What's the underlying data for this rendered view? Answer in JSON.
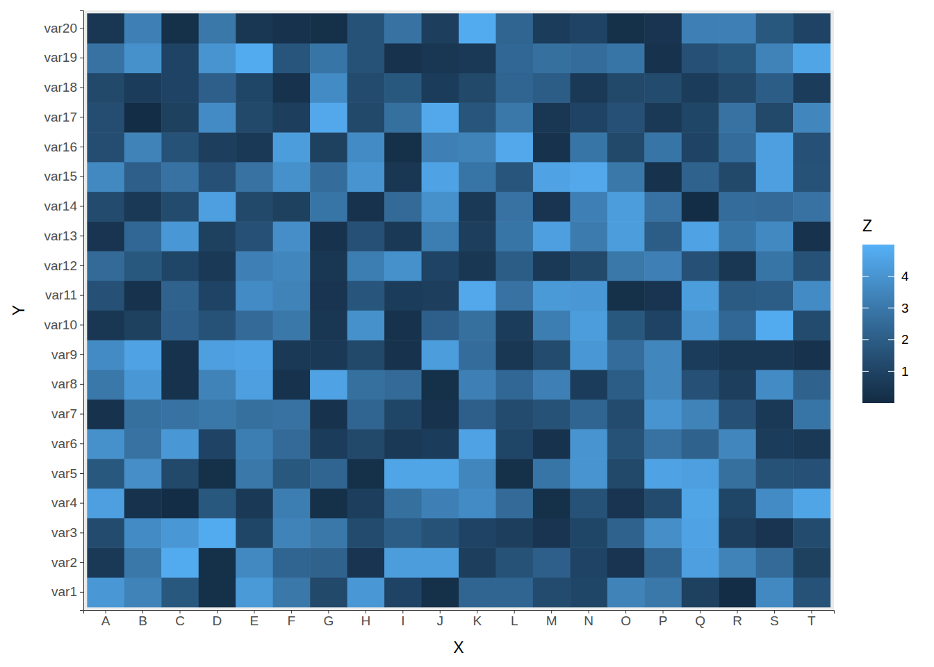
{
  "chart_data": {
    "type": "heatmap",
    "x_label": "X",
    "y_label": "Y",
    "x_categories": [
      "A",
      "B",
      "C",
      "D",
      "E",
      "F",
      "G",
      "H",
      "I",
      "J",
      "K",
      "L",
      "M",
      "N",
      "O",
      "P",
      "Q",
      "R",
      "S",
      "T"
    ],
    "y_categories": [
      "var1",
      "var2",
      "var3",
      "var4",
      "var5",
      "var6",
      "var7",
      "var8",
      "var9",
      "var10",
      "var11",
      "var12",
      "var13",
      "var14",
      "var15",
      "var16",
      "var17",
      "var18",
      "var19",
      "var20"
    ],
    "z": [
      [
        4.1,
        3.4,
        1.8,
        0.2,
        4.2,
        3.0,
        1.2,
        4.1,
        1.0,
        0.2,
        2.3,
        2.3,
        1.3,
        1.1,
        3.4,
        3.0,
        0.9,
        0.1,
        3.6,
        1.6
      ],
      [
        0.6,
        3.0,
        4.8,
        0.2,
        3.6,
        2.3,
        2.2,
        0.4,
        4.3,
        4.3,
        0.8,
        1.6,
        2.1,
        1.0,
        0.4,
        2.3,
        4.4,
        3.4,
        2.5,
        0.9
      ],
      [
        1.3,
        3.7,
        4.1,
        4.8,
        1.1,
        3.4,
        3.0,
        1.3,
        2.0,
        1.6,
        1.0,
        0.8,
        0.4,
        1.1,
        2.2,
        3.8,
        4.5,
        0.8,
        0.4,
        1.3
      ],
      [
        4.4,
        0.3,
        0.1,
        1.8,
        0.6,
        3.2,
        0.2,
        0.8,
        2.7,
        3.3,
        3.7,
        2.5,
        0.2,
        1.6,
        0.4,
        1.3,
        4.6,
        1.1,
        3.7,
        4.6
      ],
      [
        1.8,
        3.8,
        1.2,
        0.2,
        3.0,
        1.8,
        2.3,
        0.2,
        4.6,
        4.6,
        3.5,
        0.2,
        2.9,
        4.0,
        1.2,
        4.5,
        4.4,
        2.7,
        1.6,
        1.5
      ],
      [
        3.9,
        2.8,
        4.1,
        1.0,
        3.2,
        2.5,
        0.7,
        1.2,
        0.6,
        0.7,
        4.5,
        1.1,
        0.3,
        4.0,
        1.6,
        2.8,
        2.2,
        3.5,
        0.7,
        0.6
      ],
      [
        0.3,
        2.7,
        2.8,
        3.0,
        2.7,
        2.8,
        0.3,
        2.3,
        1.1,
        0.3,
        2.1,
        1.3,
        1.6,
        2.3,
        1.3,
        4.0,
        3.4,
        1.5,
        0.6,
        2.9
      ],
      [
        3.0,
        4.1,
        0.3,
        3.4,
        4.4,
        0.3,
        4.5,
        2.7,
        2.5,
        0.2,
        3.3,
        2.4,
        3.3,
        0.7,
        2.0,
        3.5,
        1.5,
        0.8,
        3.7,
        2.2
      ],
      [
        3.7,
        4.5,
        0.3,
        4.4,
        4.5,
        0.6,
        0.6,
        1.2,
        0.3,
        4.3,
        2.6,
        0.5,
        1.3,
        4.1,
        2.6,
        3.5,
        0.7,
        0.5,
        0.5,
        0.3
      ],
      [
        0.5,
        0.9,
        2.1,
        1.6,
        2.5,
        3.0,
        0.5,
        3.9,
        0.3,
        2.1,
        2.7,
        0.7,
        3.2,
        4.3,
        1.8,
        1.0,
        4.0,
        2.4,
        4.8,
        1.3
      ],
      [
        1.5,
        0.3,
        2.2,
        1.0,
        3.7,
        3.4,
        0.4,
        1.7,
        0.7,
        0.8,
        4.7,
        2.8,
        4.2,
        4.1,
        0.2,
        0.4,
        4.3,
        1.9,
        2.0,
        3.7
      ],
      [
        2.5,
        1.8,
        1.1,
        0.6,
        3.3,
        3.5,
        0.5,
        3.2,
        3.9,
        1.0,
        0.5,
        2.0,
        0.6,
        1.2,
        3.0,
        3.3,
        1.5,
        0.5,
        2.9,
        1.6
      ],
      [
        0.4,
        2.4,
        4.1,
        0.9,
        1.5,
        3.8,
        0.3,
        1.5,
        0.6,
        3.2,
        0.8,
        2.9,
        4.4,
        3.1,
        4.3,
        2.0,
        4.5,
        2.9,
        3.6,
        0.3
      ],
      [
        1.3,
        0.6,
        1.3,
        4.4,
        1.2,
        0.9,
        2.9,
        0.3,
        2.5,
        3.9,
        0.6,
        2.8,
        0.4,
        3.3,
        4.3,
        2.8,
        0.1,
        2.6,
        2.5,
        2.8
      ],
      [
        3.6,
        2.1,
        2.8,
        1.5,
        2.8,
        3.9,
        2.6,
        4.0,
        0.5,
        4.5,
        2.9,
        1.7,
        4.5,
        4.7,
        3.0,
        0.3,
        2.2,
        1.2,
        4.4,
        1.6
      ],
      [
        1.4,
        3.4,
        1.6,
        0.8,
        0.6,
        4.3,
        0.9,
        3.7,
        0.2,
        3.3,
        3.4,
        4.7,
        0.3,
        2.9,
        1.2,
        2.9,
        1.0,
        2.6,
        4.4,
        1.5
      ],
      [
        1.4,
        0.1,
        0.9,
        3.7,
        1.2,
        0.8,
        4.7,
        1.2,
        2.7,
        4.7,
        1.7,
        3.0,
        0.5,
        1.0,
        1.5,
        0.6,
        1.1,
        2.8,
        1.2,
        3.5
      ],
      [
        1.2,
        0.7,
        1.0,
        2.1,
        1.1,
        0.3,
        3.7,
        1.3,
        1.8,
        0.7,
        1.2,
        2.3,
        2.0,
        0.6,
        1.2,
        1.3,
        0.7,
        1.2,
        2.0,
        0.7
      ],
      [
        2.8,
        3.9,
        1.0,
        4.0,
        4.8,
        1.7,
        2.9,
        1.6,
        0.3,
        0.5,
        0.6,
        2.4,
        2.7,
        2.6,
        2.9,
        0.3,
        1.5,
        1.8,
        3.4,
        4.6
      ],
      [
        0.5,
        3.3,
        0.2,
        3.0,
        0.5,
        0.3,
        0.2,
        1.6,
        2.8,
        0.8,
        4.8,
        2.3,
        0.7,
        1.0,
        0.2,
        0.4,
        3.3,
        3.3,
        1.8,
        1.0
      ]
    ],
    "colorbar": {
      "title": "Z",
      "range": [
        0,
        5
      ],
      "ticks": [
        1,
        2,
        3,
        4
      ],
      "colors": [
        "#132B43",
        "#56B1F7"
      ]
    }
  }
}
